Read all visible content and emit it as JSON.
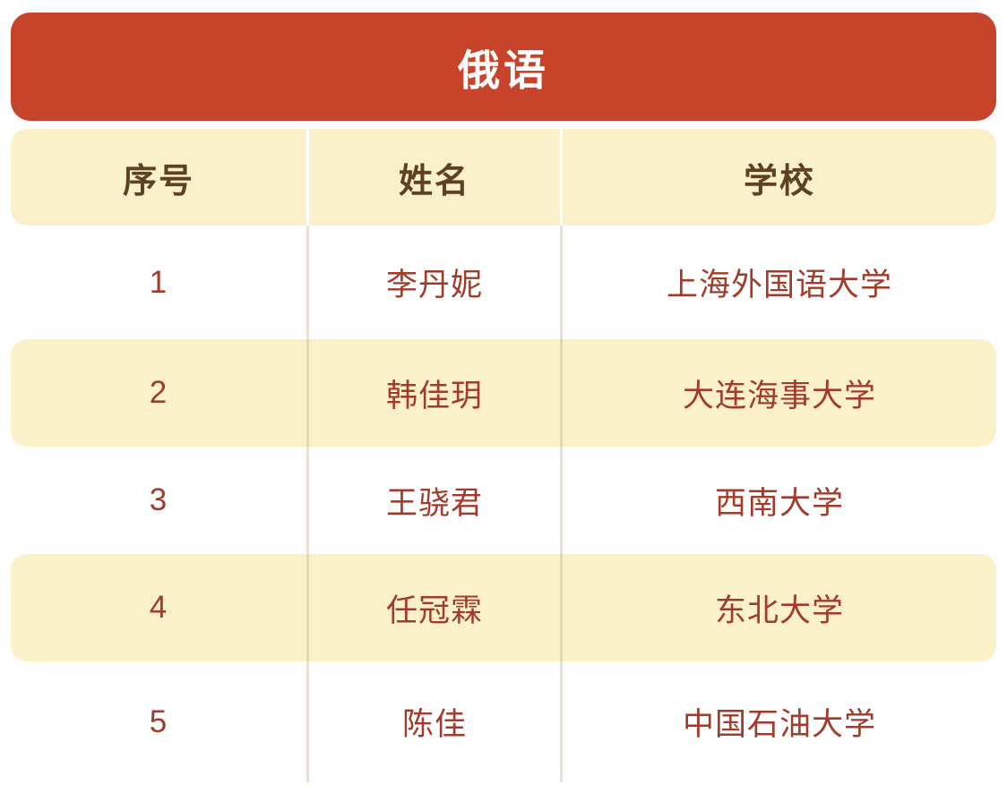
{
  "chart_data": {
    "type": "table",
    "title": "俄语",
    "columns": [
      "序号",
      "姓名",
      "学校"
    ],
    "rows": [
      [
        "1",
        "李丹妮",
        "上海外国语大学"
      ],
      [
        "2",
        "韩佳玥",
        "大连海事大学"
      ],
      [
        "3",
        "王骁君",
        "西南大学"
      ],
      [
        "4",
        "任冠霖",
        "东北大学"
      ],
      [
        "5",
        "陈佳",
        "中国石油大学"
      ]
    ],
    "layout_hints": {
      "striped": "even rows cream, odd rows white",
      "alignment": "all columns centered"
    }
  },
  "colors": {
    "banner_bg": "#C7432A",
    "banner_text": "#FFFFFF",
    "header_bg": "#FAF0C9",
    "header_text": "#5E4124",
    "row_alt_bg": "#FBF1C9",
    "data_text": "#A23B2A",
    "divider": "rgba(189,175,140,0.38)"
  }
}
